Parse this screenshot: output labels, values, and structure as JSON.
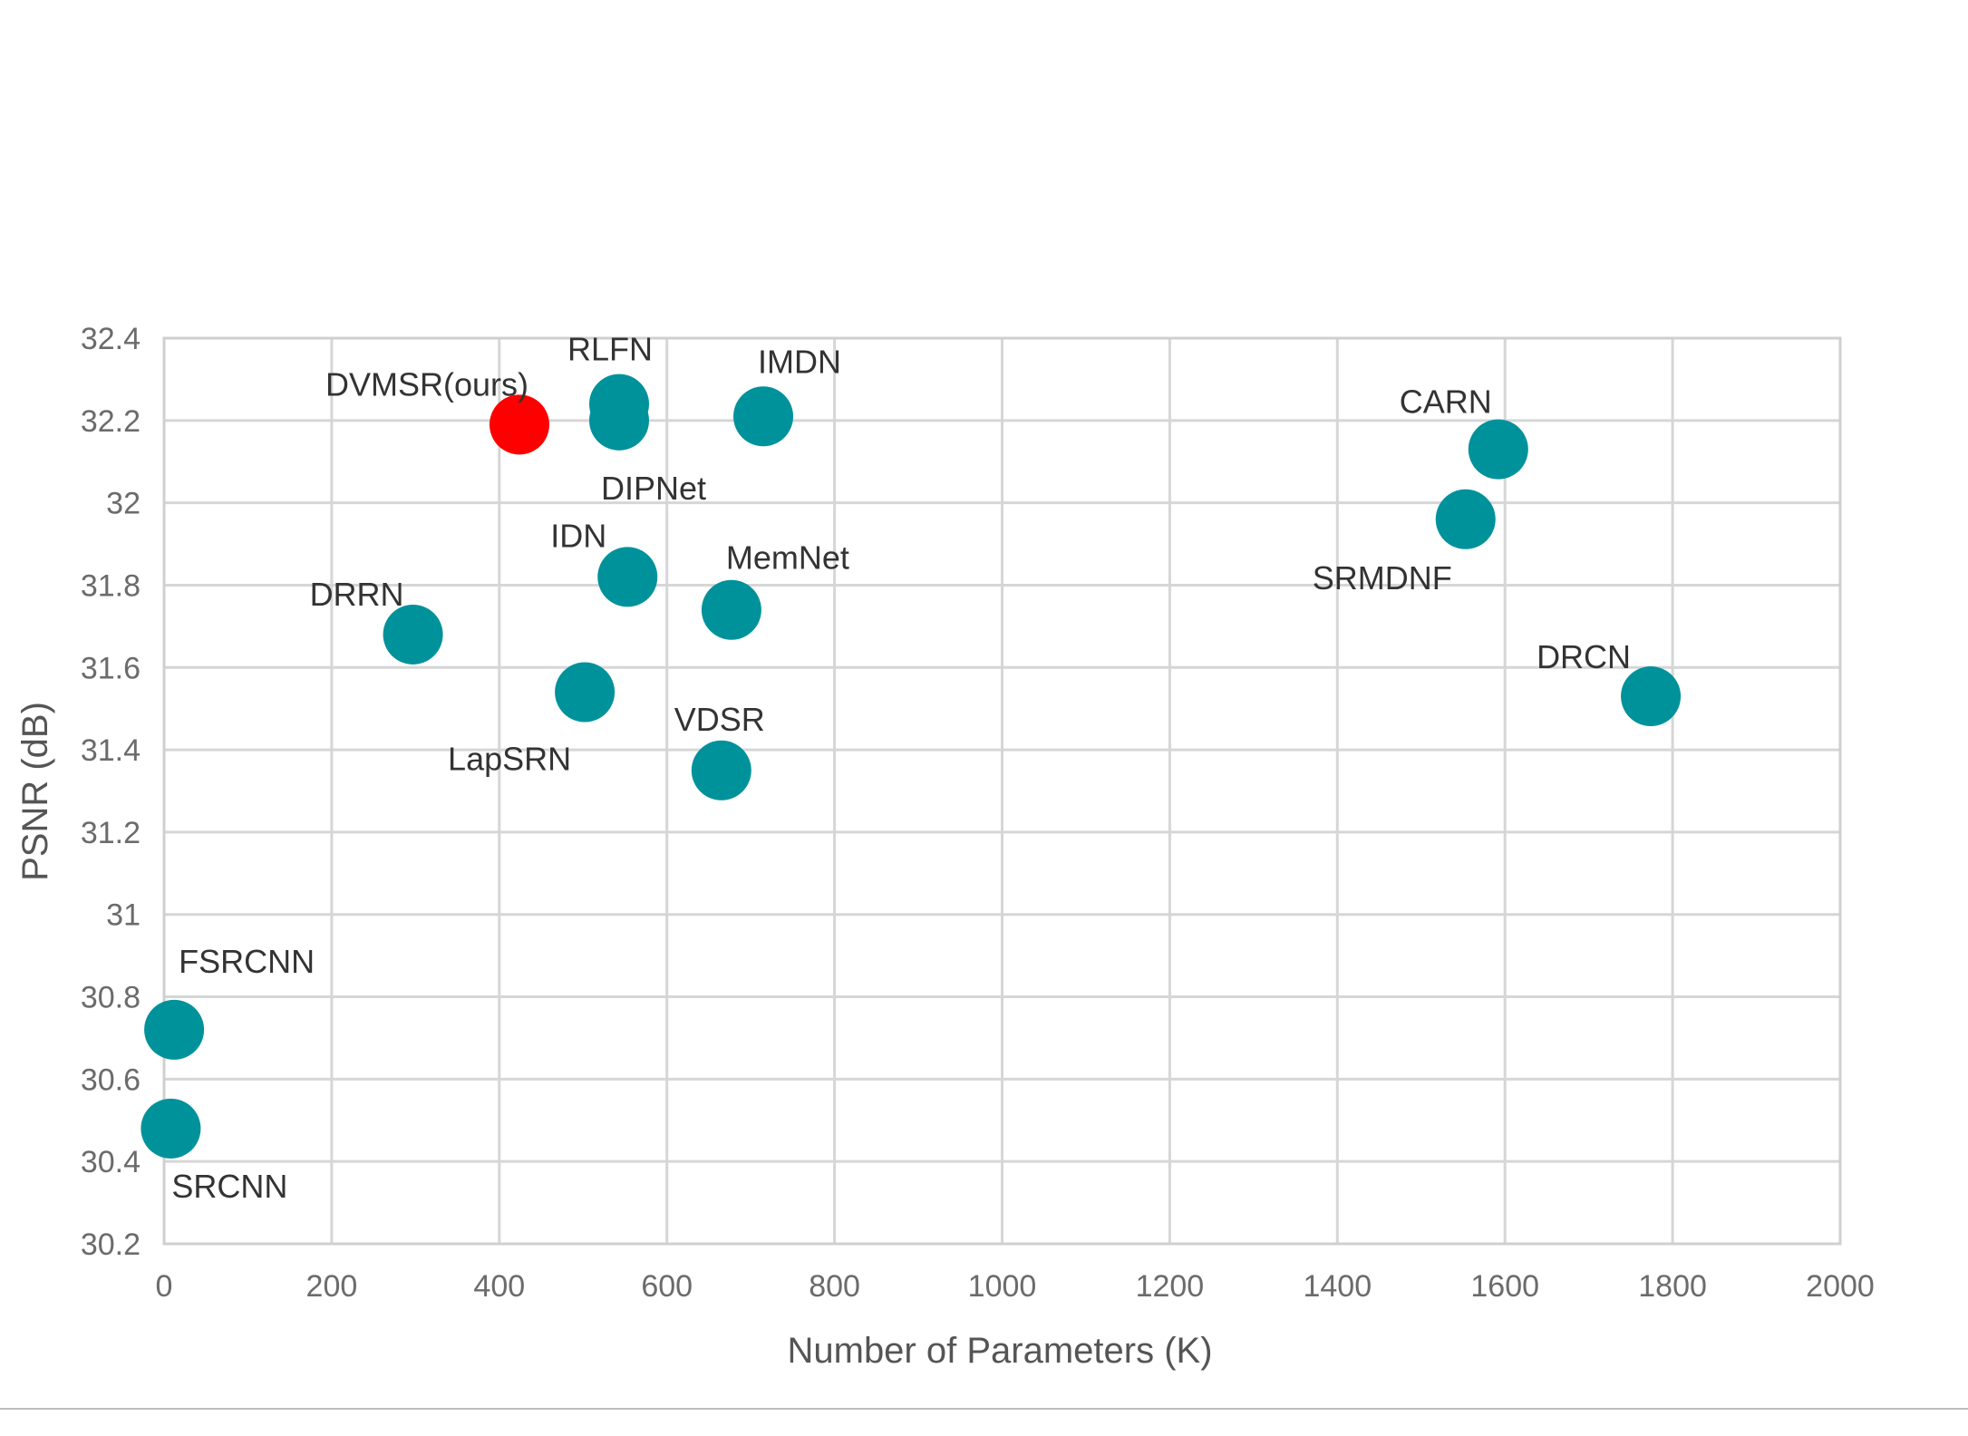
{
  "chart_data": {
    "type": "scatter",
    "xlabel": "Number of Parameters (K)",
    "ylabel": "PSNR (dB)",
    "xlim": [
      0,
      2000
    ],
    "ylim": [
      30.2,
      32.4
    ],
    "x_ticks": [
      "0",
      "200",
      "400",
      "600",
      "800",
      "1000",
      "1200",
      "1400",
      "1600",
      "1800",
      "2000"
    ],
    "y_ticks": [
      "30.2",
      "30.4",
      "30.6",
      "30.8",
      "31",
      "31.2",
      "31.4",
      "31.6",
      "31.8",
      "32",
      "32.2",
      "32.4"
    ],
    "grid": true,
    "colors": {
      "default": "#00929b",
      "highlight": "#ff0000"
    },
    "points": [
      {
        "label": "DVMSR(ours)",
        "x": 424,
        "y": 32.19,
        "highlight": true
      },
      {
        "label": "RLFN",
        "x": 543,
        "y": 32.24
      },
      {
        "label": "DIPNet",
        "x": 543,
        "y": 32.2
      },
      {
        "label": "IMDN",
        "x": 715,
        "y": 32.21
      },
      {
        "label": "CARN",
        "x": 1592,
        "y": 32.13
      },
      {
        "label": "SRMDNF",
        "x": 1553,
        "y": 31.96
      },
      {
        "label": "IDN",
        "x": 553,
        "y": 31.82
      },
      {
        "label": "MemNet",
        "x": 677,
        "y": 31.74
      },
      {
        "label": "DRRN",
        "x": 297,
        "y": 31.68
      },
      {
        "label": "DRCN",
        "x": 1774,
        "y": 31.53
      },
      {
        "label": "LapSRN",
        "x": 502,
        "y": 31.54
      },
      {
        "label": "VDSR",
        "x": 665,
        "y": 31.35
      },
      {
        "label": "FSRCNN",
        "x": 12,
        "y": 30.72
      },
      {
        "label": "SRCNN",
        "x": 8,
        "y": 30.48
      }
    ]
  }
}
